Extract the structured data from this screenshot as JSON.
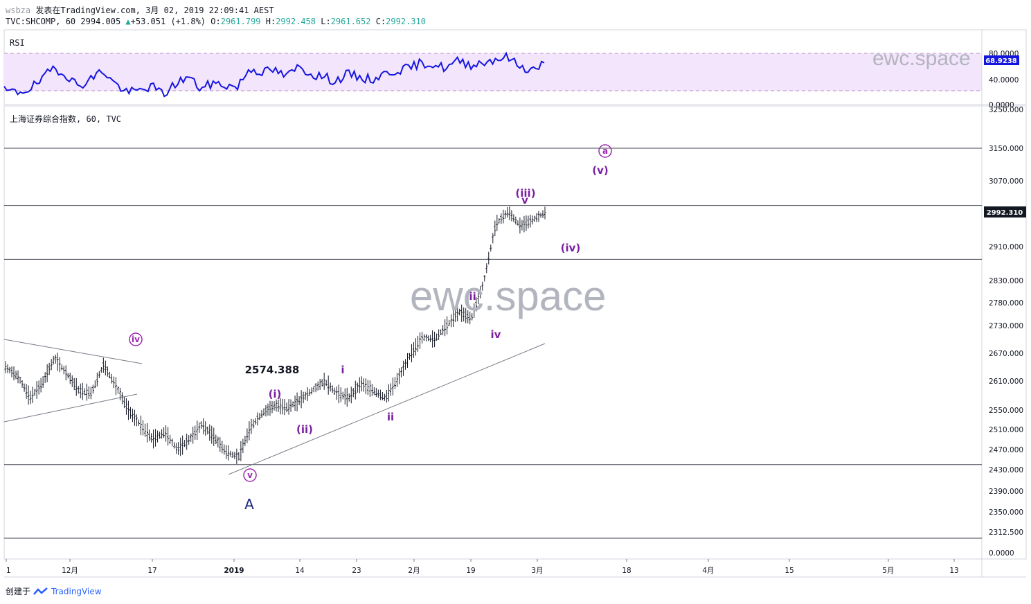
{
  "header": {
    "user": "wsbza",
    "published": "发表在TradingView.com, 3月 02, 2019 22:09:41 AEST",
    "symbol": "TVC:SHCOMP, 60",
    "last": "2994.005",
    "change": "+53.051 (+1.8%)",
    "open_label": "O:",
    "open": "2961.799",
    "high_label": "H:",
    "high": "2992.458",
    "low_label": "L:",
    "low": "2961.652",
    "close_label": "C:",
    "close": "2992.310"
  },
  "rsi_panel": {
    "label": "RSI",
    "value": "68.9238",
    "ticks": [
      "80.0000",
      "40.0000",
      "0.0000"
    ],
    "watermark": "ewc.space",
    "colors": {
      "line": "#1515e0",
      "band": "#f3e5fb",
      "band_border": "#b990c8"
    }
  },
  "main_panel": {
    "title": "上海证券综合指数, 60, TVC",
    "watermark": "ewc.space",
    "price_label": "2992.310",
    "price_ticks": [
      "3250.000",
      "3150.000",
      "3070.000",
      "2910.000",
      "2830.000",
      "2780.000",
      "2730.000",
      "2670.000",
      "2610.000",
      "2550.000",
      "2510.000",
      "2470.000",
      "2430.000",
      "2390.000",
      "2350.000",
      "2312.500",
      "0.0000"
    ],
    "annotations": {
      "level_label": "2574.388",
      "wave_A": "A",
      "circ_v": "v",
      "circ_iv": "iv",
      "circ_a": "a",
      "w_i_paren": "(i)",
      "w_ii_paren": "(ii)",
      "w_iii_paren": "(iii)",
      "w_iv_paren": "(iv)",
      "w_v_paren": "(v)",
      "w_i": "i",
      "w_ii": "ii",
      "w_iii": "iii",
      "w_iv": "iv",
      "w_v": "v"
    },
    "colors": {
      "bars": "#131722",
      "wave": "#7b1fa2",
      "wave_a": "#1a237e",
      "lines": "#434651",
      "trend": "#787b86"
    }
  },
  "time_axis": [
    "1",
    "12月",
    "17",
    "2019",
    "14",
    "23",
    "2月",
    "19",
    "3月",
    "18",
    "4月",
    "15",
    "5月",
    "13"
  ],
  "footer": {
    "created": "创建于",
    "brand": "TradingView"
  },
  "chart_data": {
    "type": "ohlc",
    "series": [
      {
        "name": "TVC:SHCOMP, 60",
        "values": [
          2640,
          2620,
          2575,
          2605,
          2660,
          2625,
          2590,
          2585,
          2645,
          2600,
          2550,
          2520,
          2490,
          2505,
          2470,
          2490,
          2520,
          2495,
          2465,
          2455,
          2515,
          2545,
          2560,
          2555,
          2570,
          2590,
          2610,
          2585,
          2575,
          2605,
          2590,
          2575,
          2615,
          2665,
          2705,
          2700,
          2730,
          2760,
          2745,
          2825,
          2965,
          2995,
          2960,
          2975,
          2992
        ]
      }
    ],
    "overlay_series": [
      {
        "name": "RSI",
        "values": [
          40,
          38,
          42,
          50,
          65,
          58,
          45,
          52,
          62,
          48,
          38,
          40,
          45,
          36,
          48,
          55,
          42,
          48,
          46,
          44,
          64,
          60,
          62,
          55,
          66,
          58,
          55,
          50,
          58,
          54,
          52,
          58,
          62,
          64,
          70,
          68,
          64,
          72,
          68,
          70,
          74,
          76,
          66,
          62,
          69
        ]
      }
    ],
    "y_ticks": [
      3250,
      3150,
      3070,
      2910,
      2830,
      2780,
      2730,
      2670,
      2610,
      2550,
      2510,
      2470,
      2430,
      2390,
      2350,
      2312.5
    ],
    "horizontal_levels": [
      3150,
      3010,
      2880,
      2440
    ],
    "last_price": 2992.31,
    "annotations": [
      "2574.388",
      "A",
      "v",
      "iv",
      "a",
      "(i)",
      "(ii)",
      "(iii)",
      "(iv)",
      "(v)",
      "i",
      "ii",
      "iii",
      "iv",
      "v"
    ]
  }
}
